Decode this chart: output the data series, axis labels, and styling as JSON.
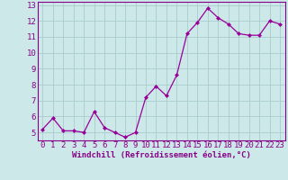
{
  "x": [
    0,
    1,
    2,
    3,
    4,
    5,
    6,
    7,
    8,
    9,
    10,
    11,
    12,
    13,
    14,
    15,
    16,
    17,
    18,
    19,
    20,
    21,
    22,
    23
  ],
  "y": [
    5.2,
    5.9,
    5.1,
    5.1,
    5.0,
    6.3,
    5.3,
    5.0,
    4.7,
    5.0,
    7.2,
    7.9,
    7.3,
    8.6,
    11.2,
    11.9,
    12.8,
    12.2,
    11.8,
    11.2,
    11.1,
    11.1,
    12.0,
    11.8
  ],
  "line_color": "#990099",
  "marker": "D",
  "marker_size": 2,
  "bg_color": "#cce8e8",
  "grid_color": "#aacccc",
  "xlabel": "Windchill (Refroidissement éolien,°C)",
  "xlabel_color": "#880088",
  "tick_color": "#880088",
  "ylim": [
    4.5,
    13.2
  ],
  "xlim": [
    -0.5,
    23.5
  ],
  "yticks": [
    5,
    6,
    7,
    8,
    9,
    10,
    11,
    12,
    13
  ],
  "xticks": [
    0,
    1,
    2,
    3,
    4,
    5,
    6,
    7,
    8,
    9,
    10,
    11,
    12,
    13,
    14,
    15,
    16,
    17,
    18,
    19,
    20,
    21,
    22,
    23
  ],
  "spine_color": "#880088",
  "label_fontsize": 6.5,
  "tick_fontsize": 6.5
}
